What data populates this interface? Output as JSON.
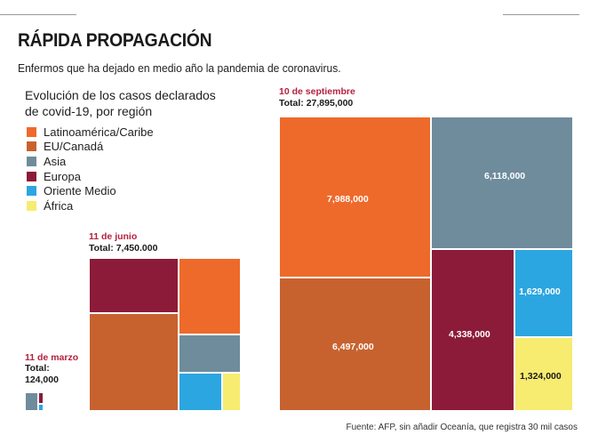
{
  "title": "RÁPIDA PROPAGACIÓN",
  "subtitle": "Enfermos que ha dejado en medio año la pandemia de coronavirus.",
  "legend_title": "Evolución de los casos declarados de covid-19, por región",
  "source": "Fuente: AFP, sin añadir Oceanía, que registra 30 mil casos",
  "colors": {
    "latam": "#ee6a2b",
    "na": "#c7622f",
    "asia": "#6f8c9c",
    "europe": "#8c1b3a",
    "me": "#2ba6e0",
    "africa": "#f7ec70"
  },
  "chart_data": [
    {
      "type": "treemap",
      "date_label": "10 de septiembre",
      "total_label": "Total: 27,895,000",
      "total": 27895000,
      "series": [
        {
          "name": "Latinoamérica/Caribe",
          "key": "latam",
          "value": 7988000,
          "label": "7,988,000"
        },
        {
          "name": "EU/Canadá",
          "key": "na",
          "value": 6497000,
          "label": "6,497,000"
        },
        {
          "name": "Asia",
          "key": "asia",
          "value": 6118000,
          "label": "6,118,000"
        },
        {
          "name": "Europa",
          "key": "europe",
          "value": 4338000,
          "label": "4,338,000"
        },
        {
          "name": "Oriente Medio",
          "key": "me",
          "value": 1629000,
          "label": "1,629,000"
        },
        {
          "name": "África",
          "key": "africa",
          "value": 1324000,
          "label": "1,324,000"
        }
      ]
    },
    {
      "type": "treemap",
      "date_label": "11 de junio",
      "total_label": "Total: 7,450.000",
      "total": 7450000,
      "series": [
        {
          "name": "Europa",
          "key": "europe"
        },
        {
          "name": "Latinoamérica/Caribe",
          "key": "latam"
        },
        {
          "name": "EU/Canadá",
          "key": "na"
        },
        {
          "name": "Asia",
          "key": "asia"
        },
        {
          "name": "Oriente Medio",
          "key": "me"
        },
        {
          "name": "África",
          "key": "africa"
        }
      ]
    },
    {
      "type": "treemap",
      "date_label": "11 de marzo",
      "total_label": "Total:",
      "total_value_label": "124,000",
      "total": 124000,
      "series": [
        {
          "name": "Asia",
          "key": "asia"
        },
        {
          "name": "Europa",
          "key": "europe"
        },
        {
          "name": "Oriente Medio",
          "key": "me"
        }
      ]
    }
  ],
  "legend": [
    {
      "label": "Latinoamérica/Caribe",
      "key": "latam"
    },
    {
      "label": "EU/Canadá",
      "key": "na"
    },
    {
      "label": "Asia",
      "key": "asia"
    },
    {
      "label": "Europa",
      "key": "europe"
    },
    {
      "label": "Oriente Medio",
      "key": "me"
    },
    {
      "label": "África",
      "key": "africa"
    }
  ]
}
